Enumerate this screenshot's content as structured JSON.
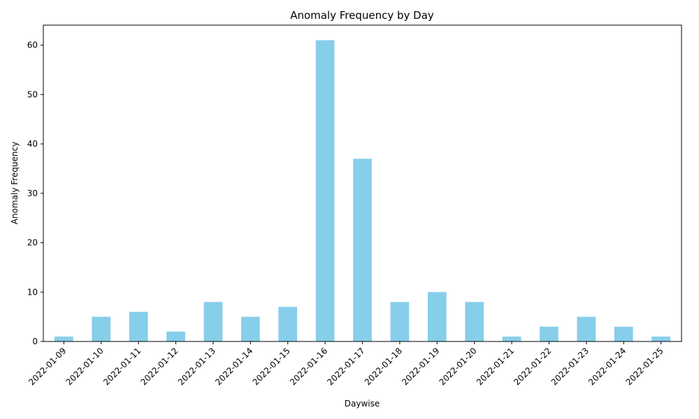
{
  "chart_data": {
    "type": "bar",
    "title": "Anomaly Frequency by Day",
    "xlabel": "Daywise",
    "ylabel": "Anomaly Frequency",
    "categories": [
      "2022-01-09",
      "2022-01-10",
      "2022-01-11",
      "2022-01-12",
      "2022-01-13",
      "2022-01-14",
      "2022-01-15",
      "2022-01-16",
      "2022-01-17",
      "2022-01-18",
      "2022-01-19",
      "2022-01-20",
      "2022-01-21",
      "2022-01-22",
      "2022-01-23",
      "2022-01-24",
      "2022-01-25"
    ],
    "values": [
      1,
      5,
      6,
      2,
      8,
      5,
      7,
      61,
      37,
      8,
      10,
      8,
      1,
      3,
      5,
      3,
      1
    ],
    "ylim": [
      0,
      64.05
    ],
    "yticks": [
      0,
      10,
      20,
      30,
      40,
      50,
      60
    ],
    "grid": false,
    "bar_color": "#87ceeb"
  }
}
